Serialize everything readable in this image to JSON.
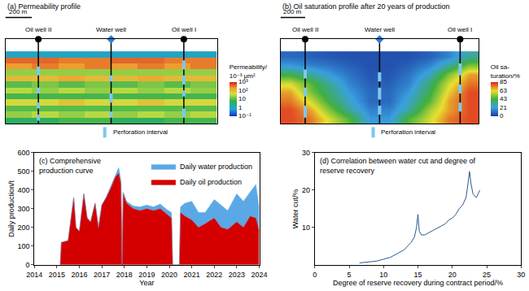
{
  "chart_data": [
    {
      "type": "heatmap",
      "title": "(a) Permeability profile",
      "xlim": [
        0,
        1600
      ],
      "ylim": [
        0,
        14
      ],
      "tick_labels": false,
      "x": [
        100,
        300,
        500,
        700,
        900,
        1100,
        1300,
        1500
      ],
      "y": [
        0.5,
        1.5,
        2.5,
        3.5,
        4.5,
        5.5,
        6.5,
        7.5,
        8.5,
        9.5,
        10.5,
        11.5
      ],
      "cells": [
        [
          5,
          5,
          8,
          8,
          5,
          5,
          8,
          8
        ],
        [
          20,
          30,
          20,
          30,
          20,
          30,
          20,
          30
        ],
        [
          10,
          10,
          10,
          10,
          10,
          10,
          10,
          10
        ],
        [
          50,
          50,
          80,
          50,
          50,
          80,
          50,
          50
        ],
        [
          8,
          8,
          8,
          8,
          8,
          8,
          8,
          8
        ],
        [
          30,
          20,
          30,
          20,
          30,
          20,
          30,
          20
        ],
        [
          10,
          15,
          10,
          15,
          10,
          15,
          10,
          15
        ],
        [
          100,
          100,
          150,
          100,
          100,
          150,
          100,
          100
        ],
        [
          20,
          20,
          20,
          20,
          20,
          20,
          20,
          20
        ],
        [
          200,
          300,
          200,
          300,
          200,
          300,
          200,
          300
        ],
        [
          400,
          400,
          300,
          300,
          400,
          400,
          300,
          300
        ],
        [
          1,
          1,
          1,
          1,
          1,
          1,
          1,
          1
        ]
      ],
      "colorbar": {
        "title": [
          "Permeability/",
          "10⁻³ μm²"
        ],
        "range": [
          0.1,
          1000
        ],
        "log": true,
        "ticks": [
          {
            "value": 1000,
            "label": "10³"
          },
          {
            "value": 100,
            "label": "10²"
          },
          {
            "value": 10,
            "label": "10"
          },
          {
            "value": 1,
            "label": "1"
          },
          {
            "value": 0.1,
            "label": "10⁻¹"
          }
        ]
      },
      "wells": [
        {
          "label": "Oil well II",
          "x": 250,
          "color": "#000000",
          "marker": "circle",
          "perforations": [
            [
              0.5,
              1.5
            ],
            [
              2.5,
              3.5
            ],
            [
              5,
              6
            ],
            [
              8,
              9.5
            ]
          ]
        },
        {
          "label": "Water well",
          "x": 800,
          "color": "#2a7fd4",
          "marker": "diamond",
          "perforations": [
            [
              1,
              2
            ],
            [
              3.5,
              5
            ],
            [
              7,
              8
            ]
          ]
        },
        {
          "label": "Oil well I",
          "x": 1350,
          "color": "#000000",
          "marker": "circle",
          "perforations": [
            [
              1,
              2.5
            ],
            [
              4.5,
              5.5
            ],
            [
              6.5,
              8
            ],
            [
              9,
              10.5
            ]
          ]
        }
      ],
      "scale_bar": {
        "length": 200,
        "label": "200 m"
      },
      "perforation_label": "Perforation interval"
    },
    {
      "type": "heatmap",
      "title": "(b) Oil saturation profile after 20 years of production",
      "xlim": [
        0,
        1600
      ],
      "ylim": [
        0,
        14
      ],
      "tick_labels": false,
      "x": [
        80,
        240,
        400,
        560,
        720,
        880,
        1040,
        1200,
        1360,
        1520
      ],
      "y": [
        0.75,
        2.25,
        3.75,
        5.25,
        6.75,
        8.25,
        9.75,
        11.25
      ],
      "cells": [
        [
          80,
          75,
          60,
          45,
          20,
          20,
          45,
          60,
          75,
          80
        ],
        [
          80,
          70,
          50,
          30,
          15,
          15,
          30,
          55,
          70,
          80
        ],
        [
          75,
          60,
          40,
          25,
          10,
          10,
          25,
          45,
          70,
          80
        ],
        [
          70,
          50,
          35,
          20,
          10,
          10,
          20,
          40,
          65,
          80
        ],
        [
          60,
          45,
          30,
          15,
          8,
          8,
          15,
          35,
          60,
          75
        ],
        [
          40,
          30,
          20,
          12,
          6,
          6,
          12,
          25,
          50,
          70
        ],
        [
          20,
          15,
          12,
          8,
          5,
          5,
          8,
          15,
          30,
          50
        ],
        [
          10,
          8,
          6,
          5,
          5,
          5,
          5,
          8,
          15,
          30
        ]
      ],
      "colorbar": {
        "title": [
          "Oil sa-",
          "turation/%"
        ],
        "range": [
          0,
          85
        ],
        "log": false,
        "ticks": [
          85,
          63,
          43,
          21,
          0
        ]
      },
      "wells": [
        {
          "label": "Oil well II",
          "x": 200,
          "color": "#000000",
          "marker": "circle",
          "perforations": [
            [
              1,
              3
            ],
            [
              4.5,
              6
            ],
            [
              7.5,
              9
            ]
          ]
        },
        {
          "label": "Water well",
          "x": 800,
          "color": "#2a7fd4",
          "marker": "diamond",
          "perforations": [
            [
              1.5,
              3
            ],
            [
              4,
              6
            ],
            [
              7,
              8.5
            ]
          ]
        },
        {
          "label": "Oil well I",
          "x": 1450,
          "color": "#000000",
          "marker": "circle",
          "perforations": [
            [
              2,
              3.5
            ],
            [
              5,
              6.5
            ],
            [
              8,
              10
            ]
          ]
        }
      ],
      "scale_bar": {
        "length": 200,
        "label": "200 m"
      },
      "perforation_label": "Perforation interval"
    },
    {
      "type": "area",
      "title": [
        "(c) Comprehensive",
        "production curve"
      ],
      "stacked": true,
      "xlabel": "Year",
      "ylabel": "Daily production/t",
      "xlim": [
        2014,
        2024
      ],
      "xticks": [
        2014,
        2015,
        2016,
        2017,
        2018,
        2019,
        2020,
        2021,
        2022,
        2023,
        2024
      ],
      "ylim": [
        0,
        600
      ],
      "yticks": [
        0,
        100,
        200,
        300,
        400,
        500,
        600
      ],
      "grid": false,
      "legend": "upper right",
      "x": [
        2015.15,
        2015.2,
        2015.5,
        2015.75,
        2015.85,
        2016.0,
        2016.2,
        2016.35,
        2016.5,
        2016.7,
        2016.85,
        2017.0,
        2017.2,
        2017.4,
        2017.6,
        2017.75,
        2017.85,
        2017.9,
        2017.95,
        2018.1,
        2018.4,
        2018.7,
        2019.0,
        2019.3,
        2019.6,
        2019.9,
        2020.1,
        2020.15,
        2020.45,
        2020.5,
        2020.7,
        2021.0,
        2021.3,
        2021.6,
        2022.0,
        2022.3,
        2022.6,
        2023.0,
        2023.3,
        2023.6,
        2023.85,
        2024.0
      ],
      "series": [
        {
          "name": "Daily oil production",
          "color": "#d40000",
          "values": [
            0,
            120,
            130,
            360,
            200,
            180,
            380,
            250,
            230,
            330,
            200,
            320,
            360,
            410,
            470,
            490,
            430,
            0,
            380,
            330,
            300,
            290,
            300,
            290,
            300,
            270,
            250,
            0,
            0,
            280,
            260,
            240,
            200,
            220,
            250,
            200,
            190,
            230,
            200,
            260,
            250,
            180
          ]
        },
        {
          "name": "Daily water production",
          "color": "#5aa9e6",
          "values": [
            0,
            0,
            0,
            0,
            0,
            0,
            0,
            0,
            0,
            0,
            0,
            0,
            5,
            10,
            10,
            30,
            20,
            0,
            10,
            10,
            15,
            20,
            20,
            20,
            25,
            25,
            30,
            0,
            0,
            30,
            70,
            100,
            80,
            60,
            100,
            120,
            100,
            150,
            140,
            130,
            180,
            120
          ]
        }
      ]
    },
    {
      "type": "line",
      "title": [
        "(d) Correlation between water cut and degree of",
        "reserve recovery"
      ],
      "xlabel": "Degree of reserve recovery during contract period/%",
      "ylabel": "Water cut/%",
      "xlim": [
        0,
        30
      ],
      "xticks": [
        0,
        5,
        10,
        15,
        20,
        25,
        30
      ],
      "ylim": [
        0,
        30
      ],
      "yticks": [
        10,
        20,
        30
      ],
      "grid": false,
      "series": [
        {
          "color": "#2b5a8a",
          "x": [
            6.5,
            8,
            9,
            10,
            11,
            12,
            13,
            13.5,
            14,
            14.5,
            14.8,
            15,
            15.2,
            15.5,
            16,
            16.5,
            17,
            17.5,
            18,
            18.5,
            19,
            19.5,
            20,
            20.5,
            21,
            21.5,
            22,
            22.3,
            22.5,
            22.7,
            23,
            23.5,
            24
          ],
          "values": [
            0.5,
            0.8,
            1,
            1.5,
            2,
            3,
            4,
            5,
            6,
            7.5,
            10,
            13.5,
            9,
            8,
            8,
            8.5,
            9,
            9.5,
            10,
            10.5,
            11,
            12,
            12.5,
            13.5,
            15,
            16,
            18,
            22,
            25,
            22,
            19,
            18,
            20
          ]
        }
      ]
    }
  ]
}
